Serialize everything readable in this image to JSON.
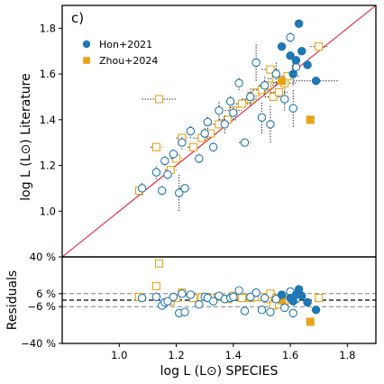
{
  "colors": {
    "hon": "#1f77b4",
    "zhou": "#e8a317",
    "identity": "#e0233b",
    "resid_zero": "#000000",
    "resid_band": "#7f7f7f"
  },
  "chart_data": [
    {
      "type": "scatter",
      "panel_label": "c)",
      "xlabel": "",
      "ylabel": "log L (L⊙) Literature",
      "xlim": [
        0.8,
        1.9
      ],
      "ylim": [
        0.8,
        1.9
      ],
      "xticks": [
        1.0,
        1.2,
        1.4,
        1.6,
        1.8
      ],
      "yticks": [
        1.0,
        1.2,
        1.4,
        1.6,
        1.8
      ],
      "ytick_labels": [
        "1.0",
        "1.2",
        "1.4",
        "1.6",
        "1.8"
      ],
      "identity_line": true,
      "legend": {
        "position": "top-left",
        "entries": [
          "Hon+2021",
          "Zhou+2024"
        ]
      },
      "series": [
        {
          "name": "Hon+2021",
          "marker": "circle",
          "open": [
            {
              "x": 1.08,
              "y": 1.1,
              "yerr": 0.03
            },
            {
              "x": 1.13,
              "y": 1.17,
              "yerr": 0.03
            },
            {
              "x": 1.15,
              "y": 1.09,
              "yerr": 0.02
            },
            {
              "x": 1.16,
              "y": 1.22,
              "yerr": 0.02
            },
            {
              "x": 1.17,
              "y": 1.16,
              "yerr": 0.02
            },
            {
              "x": 1.19,
              "y": 1.25,
              "yerr": 0.02
            },
            {
              "x": 1.21,
              "y": 1.08,
              "yerr": 0.08
            },
            {
              "x": 1.22,
              "y": 1.3,
              "yerr": 0.03
            },
            {
              "x": 1.23,
              "y": 1.1,
              "xerr": 0.02
            },
            {
              "x": 1.25,
              "y": 1.35,
              "yerr": 0.03
            },
            {
              "x": 1.28,
              "y": 1.23,
              "yerr": 0.02
            },
            {
              "x": 1.3,
              "y": 1.34,
              "yerr": 0.03
            },
            {
              "x": 1.31,
              "y": 1.39,
              "yerr": 0.03
            },
            {
              "x": 1.33,
              "y": 1.28,
              "yerr": 0.02
            },
            {
              "x": 1.35,
              "y": 1.44,
              "yerr": 0.04
            },
            {
              "x": 1.37,
              "y": 1.38,
              "yerr": 0.04
            },
            {
              "x": 1.39,
              "y": 1.48,
              "yerr": 0.03
            },
            {
              "x": 1.4,
              "y": 1.43,
              "yerr": 0.03
            },
            {
              "x": 1.42,
              "y": 1.56,
              "yerr": 0.03
            },
            {
              "x": 1.44,
              "y": 1.3,
              "xerr": 0.02
            },
            {
              "x": 1.46,
              "y": 1.5,
              "yerr": 0.04
            },
            {
              "x": 1.48,
              "y": 1.65,
              "yerr": 0.08
            },
            {
              "x": 1.5,
              "y": 1.41,
              "yerr": 0.07
            },
            {
              "x": 1.51,
              "y": 1.55,
              "yerr": 0.04
            },
            {
              "x": 1.53,
              "y": 1.38,
              "yerr": 0.08
            },
            {
              "x": 1.55,
              "y": 1.6,
              "yerr": 0.05
            },
            {
              "x": 1.58,
              "y": 1.49,
              "yerr": 0.05
            },
            {
              "x": 1.6,
              "y": 1.76,
              "yerr": 0.02
            },
            {
              "x": 1.61,
              "y": 1.45,
              "yerr": 0.08
            },
            {
              "x": 1.62,
              "y": 1.63,
              "yerr": 0.03
            }
          ],
          "filled": [
            {
              "x": 1.57,
              "y": 1.72
            },
            {
              "x": 1.6,
              "y": 1.68
            },
            {
              "x": 1.61,
              "y": 1.6,
              "yerr": 0.05
            },
            {
              "x": 1.62,
              "y": 1.66
            },
            {
              "x": 1.63,
              "y": 1.82
            },
            {
              "x": 1.64,
              "y": 1.7
            },
            {
              "x": 1.66,
              "y": 1.64
            },
            {
              "x": 1.69,
              "y": 1.57,
              "xerr": 0.08
            }
          ]
        },
        {
          "name": "Zhou+2024",
          "marker": "square",
          "open": [
            {
              "x": 1.07,
              "y": 1.09,
              "yerr": 0.02
            },
            {
              "x": 1.13,
              "y": 1.28,
              "xerr": 0.02
            },
            {
              "x": 1.14,
              "y": 1.49,
              "xerr": 0.06
            },
            {
              "x": 1.18,
              "y": 1.18,
              "xerr": 0.02
            },
            {
              "x": 1.2,
              "y": 1.23,
              "xerr": 0.02
            },
            {
              "x": 1.22,
              "y": 1.32,
              "xerr": 0.02
            },
            {
              "x": 1.26,
              "y": 1.28,
              "xerr": 0.02
            },
            {
              "x": 1.29,
              "y": 1.32,
              "xerr": 0.03
            },
            {
              "x": 1.32,
              "y": 1.34,
              "xerr": 0.02
            },
            {
              "x": 1.35,
              "y": 1.38,
              "xerr": 0.03
            },
            {
              "x": 1.38,
              "y": 1.4,
              "xerr": 0.03
            },
            {
              "x": 1.4,
              "y": 1.44,
              "xerr": 0.03
            },
            {
              "x": 1.43,
              "y": 1.47,
              "xerr": 0.03
            },
            {
              "x": 1.46,
              "y": 1.49,
              "xerr": 0.03
            },
            {
              "x": 1.48,
              "y": 1.52,
              "xerr": 0.03
            },
            {
              "x": 1.5,
              "y": 1.53,
              "xerr": 0.03
            },
            {
              "x": 1.52,
              "y": 1.55,
              "xerr": 0.03
            },
            {
              "x": 1.53,
              "y": 1.62,
              "xerr": 0.03
            },
            {
              "x": 1.54,
              "y": 1.5,
              "xerr": 0.03
            },
            {
              "x": 1.55,
              "y": 1.58,
              "xerr": 0.03
            },
            {
              "x": 1.56,
              "y": 1.52,
              "xerr": 0.03
            },
            {
              "x": 1.58,
              "y": 1.56,
              "xerr": 0.04
            },
            {
              "x": 1.59,
              "y": 1.59,
              "xerr": 0.04
            },
            {
              "x": 1.7,
              "y": 1.72,
              "xerr": 0.03
            }
          ],
          "filled": [
            {
              "x": 1.57,
              "y": 1.57
            },
            {
              "x": 1.67,
              "y": 1.4
            }
          ]
        }
      ]
    },
    {
      "type": "scatter",
      "xlabel": "log L (L⊙) SPECIES",
      "ylabel": "Residuals",
      "xlim": [
        0.8,
        1.9
      ],
      "ylim": [
        -40,
        40
      ],
      "xticks": [
        1.0,
        1.2,
        1.4,
        1.6,
        1.8
      ],
      "xtick_labels": [
        "1.0",
        "1.2",
        "1.4",
        "1.6",
        "1.8"
      ],
      "yticks": [
        -40,
        -6,
        6,
        40
      ],
      "ytick_labels": [
        "−40 %",
        "−6 %",
        "6 %",
        "40 %"
      ],
      "reference_lines": [
        0,
        -6,
        6
      ],
      "series": [
        {
          "name": "Hon+2021",
          "open": [
            {
              "x": 1.08,
              "y": 2
            },
            {
              "x": 1.13,
              "y": 3
            },
            {
              "x": 1.15,
              "y": -5
            },
            {
              "x": 1.16,
              "y": -2
            },
            {
              "x": 1.17,
              "y": -1
            },
            {
              "x": 1.19,
              "y": 3
            },
            {
              "x": 1.21,
              "y": -12
            },
            {
              "x": 1.22,
              "y": 6
            },
            {
              "x": 1.23,
              "y": -11
            },
            {
              "x": 1.25,
              "y": 5
            },
            {
              "x": 1.28,
              "y": -4
            },
            {
              "x": 1.3,
              "y": 3
            },
            {
              "x": 1.31,
              "y": 2
            },
            {
              "x": 1.33,
              "y": -1
            },
            {
              "x": 1.35,
              "y": 4
            },
            {
              "x": 1.37,
              "y": 1
            },
            {
              "x": 1.39,
              "y": 2
            },
            {
              "x": 1.4,
              "y": 3
            },
            {
              "x": 1.42,
              "y": 9
            },
            {
              "x": 1.44,
              "y": -10
            },
            {
              "x": 1.46,
              "y": 3
            },
            {
              "x": 1.48,
              "y": 7
            },
            {
              "x": 1.5,
              "y": -9
            },
            {
              "x": 1.51,
              "y": 2
            },
            {
              "x": 1.53,
              "y": -11
            },
            {
              "x": 1.55,
              "y": 1
            },
            {
              "x": 1.58,
              "y": -7
            },
            {
              "x": 1.6,
              "y": 8
            },
            {
              "x": 1.61,
              "y": -12
            },
            {
              "x": 1.62,
              "y": 1
            }
          ],
          "filled": [
            {
              "x": 1.57,
              "y": 5
            },
            {
              "x": 1.6,
              "y": 2
            },
            {
              "x": 1.61,
              "y": -1
            },
            {
              "x": 1.62,
              "y": 5
            },
            {
              "x": 1.63,
              "y": 10
            },
            {
              "x": 1.64,
              "y": 4
            },
            {
              "x": 1.66,
              "y": -2
            },
            {
              "x": 1.69,
              "y": -9
            }
          ]
        },
        {
          "name": "Zhou+2024",
          "open": [
            {
              "x": 1.07,
              "y": 3
            },
            {
              "x": 1.13,
              "y": 13
            },
            {
              "x": 1.14,
              "y": 34
            },
            {
              "x": 1.18,
              "y": -1
            },
            {
              "x": 1.2,
              "y": 2
            },
            {
              "x": 1.22,
              "y": 7
            },
            {
              "x": 1.26,
              "y": 2
            },
            {
              "x": 1.29,
              "y": 3
            },
            {
              "x": 1.32,
              "y": 2
            },
            {
              "x": 1.35,
              "y": 3
            },
            {
              "x": 1.38,
              "y": 1
            },
            {
              "x": 1.4,
              "y": 4
            },
            {
              "x": 1.43,
              "y": 2
            },
            {
              "x": 1.46,
              "y": 2
            },
            {
              "x": 1.48,
              "y": 3
            },
            {
              "x": 1.5,
              "y": 3
            },
            {
              "x": 1.52,
              "y": 1
            },
            {
              "x": 1.53,
              "y": 6
            },
            {
              "x": 1.54,
              "y": -5
            },
            {
              "x": 1.55,
              "y": 2
            },
            {
              "x": 1.56,
              "y": -4
            },
            {
              "x": 1.58,
              "y": -1
            },
            {
              "x": 1.59,
              "y": 1
            },
            {
              "x": 1.7,
              "y": 2
            }
          ],
          "filled": [
            {
              "x": 1.57,
              "y": 0
            },
            {
              "x": 1.67,
              "y": -20
            }
          ]
        }
      ]
    }
  ]
}
